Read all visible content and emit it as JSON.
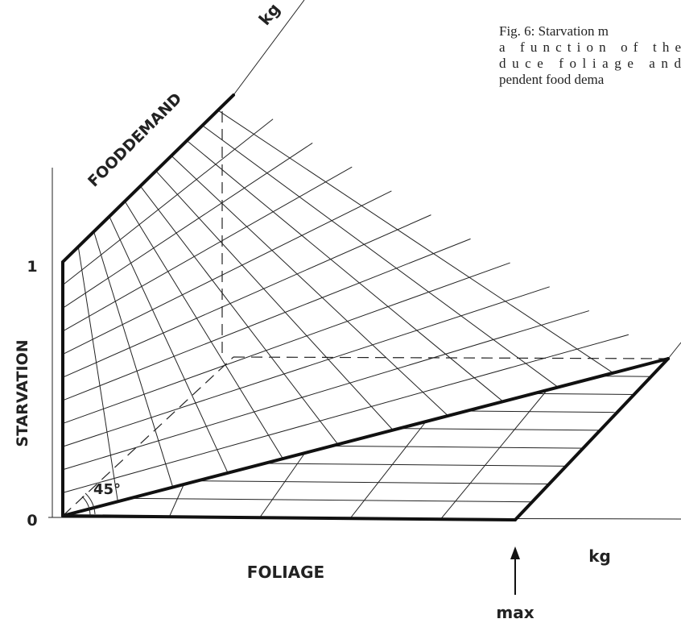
{
  "caption": {
    "lines": [
      "Fig. 6: Starvation m",
      "a function of the",
      "duce foliage and",
      "pendent food dema"
    ]
  },
  "labels": {
    "depth_unit": "kg",
    "food_demand": "FOODDEMAND",
    "starvation": "STARVATION",
    "tick_one": "1",
    "tick_zero": "0",
    "angle": "45°",
    "foliage": "FOLIAGE",
    "foliage_unit": "kg",
    "max": "max"
  }
}
